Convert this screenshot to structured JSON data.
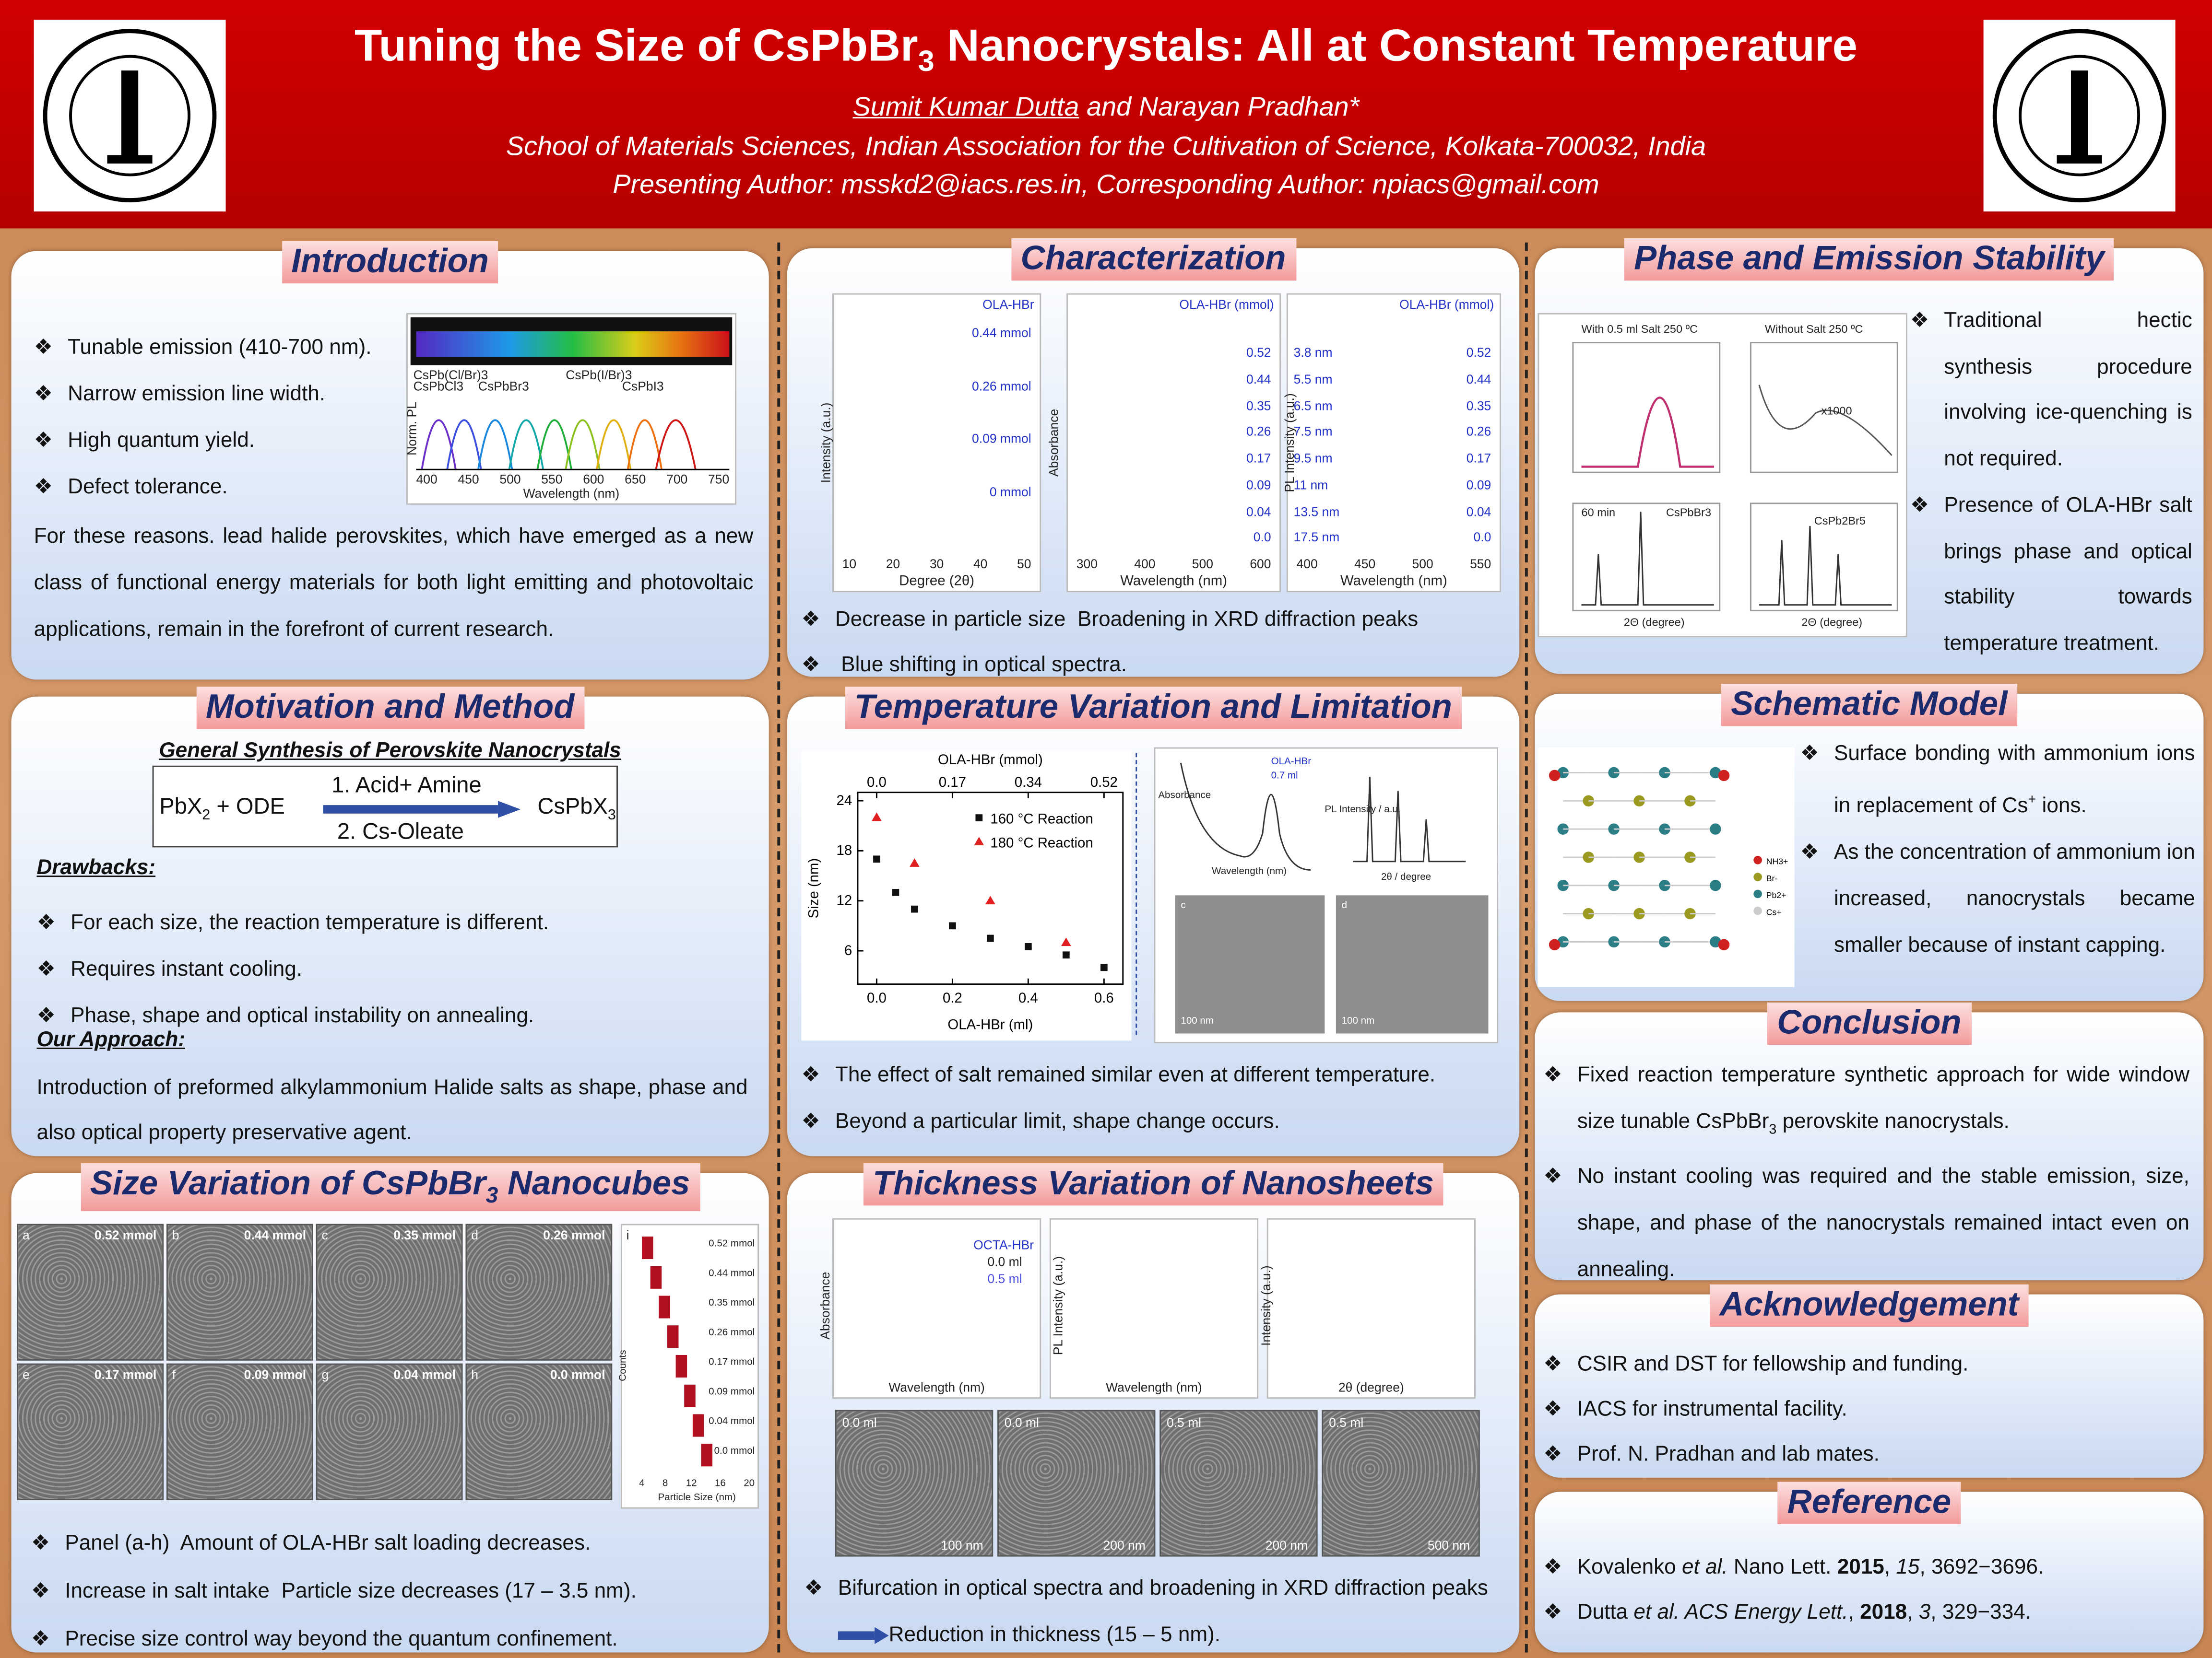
{
  "header": {
    "title": {
      "pre": "Tuning the Size of CsPbBr",
      "sub": "3",
      "post": " Nanocrystals: All at Constant Temperature"
    },
    "presenting_author": "Sumit Kumar Dutta",
    "other_authors": " and Narayan Pradhan*",
    "affiliation": "School of Materials Sciences, Indian Association for the Cultivation of Science, Kolkata-700032, India",
    "contact": "Presenting Author: msskd2@iacs.res.in, Corresponding Author: npiacs@gmail.com"
  },
  "introduction": {
    "title": "Introduction",
    "bullets": [
      "Tunable emission (410-700 nm).",
      "Narrow emission line width.",
      "High quantum yield.",
      "Defect tolerance."
    ],
    "figure": {
      "x_label": "Wavelength (nm)",
      "y_label": "Norm. PL",
      "labels": [
        "CsPb(Cl/Br)3",
        "CsPbCl3",
        "CsPbBr3",
        "CsPb(I/Br)3",
        "CsPbI3"
      ],
      "ticks": [
        "400",
        "450",
        "500",
        "550",
        "600",
        "650",
        "700",
        "750"
      ]
    },
    "paragraph": "For these reasons. lead halide perovskites, which have emerged as a new class of functional energy materials for both light emitting and photovoltaic applications, remain in the forefront of current research."
  },
  "motivation": {
    "title": "Motivation and Method",
    "synthesis_title": "General Synthesis of Perovskite Nanocrystals",
    "reactant": {
      "pre": "PbX",
      "sub": "2",
      "post": " + ODE"
    },
    "step1": "1. Acid+ Amine",
    "step2": "2. Cs-Oleate",
    "product": {
      "pre": "CsPbX",
      "sub": "3"
    },
    "drawbacks_title": "Drawbacks:",
    "drawbacks": [
      "For each size, the reaction temperature is different.",
      "Requires instant cooling.",
      "Phase, shape and optical instability on annealing."
    ],
    "approach_title": "Our Approach:",
    "approach": "Introduction of preformed alkylammonium Halide salts as  shape, phase and also optical property preservative agent."
  },
  "size_variation": {
    "title": {
      "pre": "Size Variation of CsPbBr",
      "sub": "3",
      "post": " Nanocubes"
    },
    "panels": [
      {
        "letter": "a",
        "label": "0.52 mmol"
      },
      {
        "letter": "b",
        "label": "0.44 mmol"
      },
      {
        "letter": "c",
        "label": "0.35 mmol"
      },
      {
        "letter": "d",
        "label": "0.26 mmol"
      },
      {
        "letter": "e",
        "label": "0.17 mmol"
      },
      {
        "letter": "f",
        "label": "0.09 mmol"
      },
      {
        "letter": "g",
        "label": "0.04 mmol"
      },
      {
        "letter": "h",
        "label": "0.0 mmol"
      }
    ],
    "histogram": {
      "letter": "i",
      "x_label": "Particle Size (nm)",
      "y_label": "Counts",
      "labels": [
        "0.52 mmol",
        "0.44 mmol",
        "0.35 mmol",
        "0.26 mmol",
        "0.17 mmol",
        "0.09 mmol",
        "0.04 mmol",
        "0.0 mmol"
      ],
      "ticks": [
        "4",
        "8",
        "12",
        "16",
        "20"
      ]
    },
    "bullets": [
      {
        "pre": "Panel (a-h)",
        "post": "Amount of OLA-HBr salt loading decreases."
      },
      {
        "pre": "Increase in salt intake",
        "post": "Particle size decreases (17 – 3.5 nm)."
      },
      {
        "pre": "Precise size control way beyond the quantum confinement."
      }
    ]
  },
  "characterization": {
    "title": "Characterization",
    "figures": [
      {
        "x_label": "Degree (2θ)",
        "y_label": "Intensity (a.u.)",
        "legend": "OLA-HBr",
        "labels": [
          "0.44 mmol",
          "0.26 mmol",
          "0.09 mmol",
          "0 mmol"
        ],
        "ticks": [
          "10",
          "20",
          "30",
          "40",
          "50"
        ]
      },
      {
        "x_label": "Wavelength (nm)",
        "y_label": "Absorbance",
        "legend": "OLA-HBr (mmol)",
        "labels": [
          "0.52",
          "0.44",
          "0.35",
          "0.26",
          "0.17",
          "0.09",
          "0.04",
          "0.0"
        ],
        "ticks": [
          "300",
          "400",
          "500",
          "600"
        ]
      },
      {
        "x_label": "Wavelength (nm)",
        "y_label": "PL Intensity (a.u.)",
        "legend": "OLA-HBr (mmol)",
        "sizes": [
          "3.8 nm",
          "5.5 nm",
          "6.5 nm",
          "7.5 nm",
          "9.5 nm",
          "11 nm",
          "13.5 nm",
          "17.5 nm"
        ],
        "labels": [
          "0.52",
          "0.44",
          "0.35",
          "0.26",
          "0.17",
          "0.09",
          "0.04",
          "0.0"
        ],
        "ticks": [
          "400",
          "450",
          "500",
          "550"
        ]
      }
    ],
    "bullets": [
      {
        "pre": "Decrease in  particle size",
        "post": "Broadening in XRD diffraction peaks"
      },
      {
        "post": "Blue shifting in optical spectra."
      }
    ]
  },
  "temperature": {
    "title": "Temperature Variation and Limitation",
    "chart": {
      "type": "scatter",
      "x_label": "OLA-HBr (ml)",
      "x2_label": "OLA-HBr (mmol)",
      "y_label": "Size (nm)",
      "xlim": [
        -0.05,
        0.65
      ],
      "ylim": [
        2,
        25
      ],
      "xticks": [
        {
          "value": 0,
          "label": "0.0"
        },
        0.2,
        0.4,
        0.6
      ],
      "x2ticks": [
        {
          "value": 0,
          "label": "0.0"
        },
        {
          "value": 0.2,
          "label": "0.17"
        },
        {
          "value": 0.4,
          "label": "0.34"
        },
        {
          "value": 0.6,
          "label": "0.52"
        }
      ],
      "yticks": [
        6,
        12,
        18,
        24
      ],
      "series": [
        {
          "name": "160 °C Reaction",
          "color": "#111111",
          "marker": "square",
          "x": [
            0,
            0.05,
            0.1,
            0.2,
            0.3,
            0.4,
            0.5,
            0.6
          ],
          "values": [
            17,
            13,
            11,
            9,
            7.5,
            6.5,
            5.5,
            4
          ]
        },
        {
          "name": "180 °C Reaction",
          "color": "#e02020",
          "marker": "triangle",
          "x": [
            0,
            0.1,
            0.3,
            0.5
          ],
          "values": [
            22,
            16.5,
            12,
            7
          ]
        }
      ]
    },
    "side_labels": [
      "OLA-HBr",
      "0.7 ml",
      "Absorbance",
      "Wavelength (nm)",
      "PL Intensity / a.u.",
      "2θ / degree",
      "c",
      "d",
      "100 nm",
      "100 nm"
    ],
    "bullets": [
      "The effect of salt remained similar even at different  temperature.",
      "Beyond a particular limit, shape change occurs."
    ]
  },
  "thickness": {
    "title": "Thickness  Variation of Nanosheets",
    "figure_labels": {
      "legend": "OCTA-HBr",
      "series": [
        "0.0 ml",
        "0.5 ml"
      ],
      "x1": "Wavelength (nm)",
      "y1": "Absorbance",
      "x2": "Wavelength (nm)",
      "y2": "PL Intensity (a.u.)",
      "x3": "2θ (degree)",
      "y3": "Intensity (a.u.)"
    },
    "tem_labels": [
      {
        "vol": "0.0 ml",
        "scale": "100 nm"
      },
      {
        "vol": "0.0 ml",
        "scale": "200 nm"
      },
      {
        "vol": "0.5 ml",
        "scale": "200 nm"
      },
      {
        "vol": "0.5 ml",
        "scale": "500 nm"
      }
    ],
    "bullet": {
      "pre": "Bifurcation in optical spectra and broadening in XRD diffraction peaks",
      "post": "Reduction in thickness (15 – 5 nm)."
    }
  },
  "phase": {
    "title": "Phase and Emission Stability",
    "figure_labels": [
      "With 0.5 ml Salt 250 ºC",
      "Without Salt 250 ºC",
      "x1000",
      "60 min",
      "CsPbBr3",
      "CsPb2Br5",
      "2Θ (degree)",
      "2Θ (degree)"
    ],
    "bullets": [
      "Traditional hectic synthesis procedure involving ice-quenching is not required.",
      "Presence of OLA-HBr salt brings phase and optical stability towards temperature treatment."
    ]
  },
  "schematic": {
    "title": "Schematic Model",
    "legend": [
      "NH3+",
      "Br-",
      "Pb2+",
      "Cs+"
    ],
    "bullets": [
      {
        "pre": "Surface bonding with ammonium ions in replacement of Cs",
        "sup": "+",
        "post": " ions."
      },
      {
        "pre": "As the concentration of ammonium ion increased, nanocrystals became smaller because of instant capping."
      }
    ]
  },
  "conclusion": {
    "title": "Conclusion",
    "bullets": [
      {
        "pre": "Fixed reaction temperature synthetic approach for wide window size tunable CsPbBr",
        "sub": "3",
        "post": " perovskite nanocrystals."
      },
      {
        "pre": "No instant cooling was required and the stable emission, size, shape, and phase of the nanocrystals remained intact even on annealing."
      }
    ]
  },
  "acknowledgement": {
    "title": "Acknowledgement",
    "bullets": [
      "CSIR and DST for fellowship and funding.",
      "IACS for instrumental facility.",
      "Prof. N. Pradhan and lab mates."
    ]
  },
  "reference": {
    "title": "Reference",
    "items": [
      {
        "author": "Kovalenko ",
        "etal": "et al.",
        "journal": " Nano Lett. ",
        "year": "2015",
        "sep": ", ",
        "volume": "15",
        "pages": ", 3692−3696."
      },
      {
        "author": "Dutta ",
        "etal": "et al.",
        "journal": " ACS Energy Lett.",
        "sep0": ", ",
        "year": "2018",
        "sep": ", ",
        "volume": "3",
        "pages": ", 329−334."
      }
    ]
  }
}
